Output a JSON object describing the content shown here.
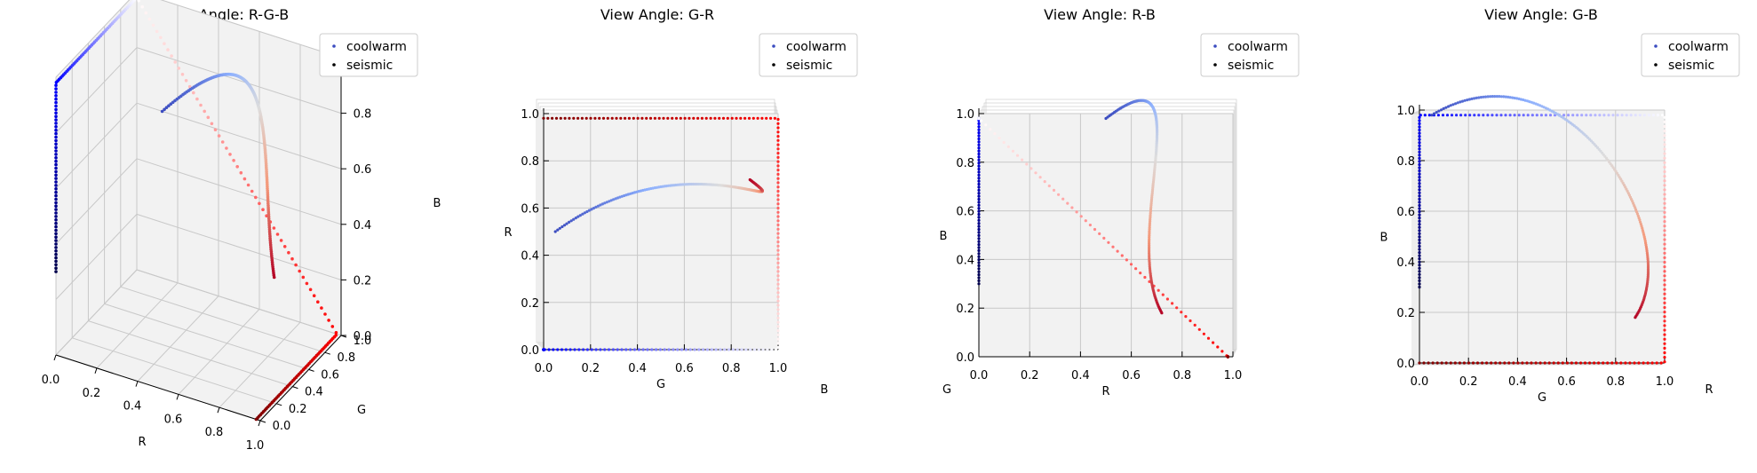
{
  "chart_data": [
    {
      "type": "scatter",
      "title": "View Angle: R-G-B",
      "xlabel": "R",
      "ylabel": "G",
      "zlabel": "B",
      "ticks": [
        "0.0",
        "0.2",
        "0.4",
        "0.6",
        "0.8",
        "1.0"
      ],
      "xlim": [
        0,
        1
      ],
      "ylim": [
        0,
        1
      ],
      "zlim": [
        0,
        1
      ],
      "grid": true,
      "legend_position": "top-right",
      "series": [
        {
          "name": "coolwarm",
          "colormap": "coolwarm"
        },
        {
          "name": "seismic",
          "colormap": "seismic"
        }
      ]
    },
    {
      "type": "scatter",
      "title": "View Angle: G-R",
      "xlabel": "G",
      "ylabel": "R",
      "zlabel": "B",
      "ticks": [
        "0.0",
        "0.2",
        "0.4",
        "0.6",
        "0.8",
        "1.0"
      ],
      "xlim": [
        0,
        1
      ],
      "ylim": [
        0,
        1
      ],
      "zlim": [
        0,
        1
      ],
      "grid": true,
      "legend_position": "top-right",
      "series": [
        {
          "name": "coolwarm",
          "colormap": "coolwarm"
        },
        {
          "name": "seismic",
          "colormap": "seismic"
        }
      ]
    },
    {
      "type": "scatter",
      "title": "View Angle: R-B",
      "xlabel": "R",
      "ylabel": "B",
      "zlabel": "G",
      "ticks": [
        "0.0",
        "0.2",
        "0.4",
        "0.6",
        "0.8",
        "1.0"
      ],
      "xlim": [
        0,
        1
      ],
      "ylim": [
        0,
        1
      ],
      "zlim": [
        0,
        1
      ],
      "grid": true,
      "legend_position": "top-right",
      "series": [
        {
          "name": "coolwarm",
          "colormap": "coolwarm"
        },
        {
          "name": "seismic",
          "colormap": "seismic"
        }
      ]
    },
    {
      "type": "scatter",
      "title": "View Angle: G-B",
      "xlabel": "G",
      "ylabel": "B",
      "zlabel": "R",
      "ticks": [
        "0.0",
        "0.2",
        "0.4",
        "0.6",
        "0.8",
        "1.0"
      ],
      "xlim": [
        0,
        1
      ],
      "ylim": [
        0,
        1
      ],
      "zlim": [
        0,
        1
      ],
      "grid": true,
      "legend_position": "top-right",
      "series": [
        {
          "name": "coolwarm",
          "colormap": "coolwarm"
        },
        {
          "name": "seismic",
          "colormap": "seismic"
        }
      ]
    }
  ],
  "legend": {
    "coolwarm": "coolwarm",
    "seismic": "seismic"
  },
  "colors": {
    "coolwarm_marker": "#3b4cc0",
    "seismic_marker": "#000000"
  }
}
